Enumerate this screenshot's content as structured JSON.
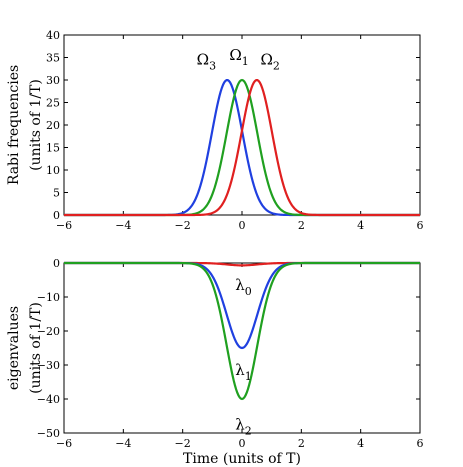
{
  "chart_data": [
    {
      "type": "line",
      "id": "top",
      "xlim": [
        -6,
        6
      ],
      "ylim": [
        0,
        40
      ],
      "xticks": [
        -6,
        -4,
        -2,
        0,
        2,
        4,
        6
      ],
      "yticks": [
        0,
        5,
        10,
        15,
        20,
        25,
        30,
        35,
        40
      ],
      "xticklabels": [
        "−6",
        "−4",
        "−2",
        "0",
        "2",
        "4",
        "6"
      ],
      "yticklabels": [
        "0",
        "5",
        "10",
        "15",
        "20",
        "25",
        "30",
        "35",
        "40"
      ],
      "xlabel": "",
      "ylabel_lines": [
        "Rabi frequencies",
        "(units of 1/T)"
      ],
      "grid": false,
      "series": [
        {
          "color": "#2040e0",
          "amplitude": 30,
          "center": -0.5,
          "width": 0.73
        },
        {
          "color": "#20a020",
          "amplitude": 30,
          "center": 0.0,
          "width": 0.73
        },
        {
          "color": "#e02020",
          "amplitude": 30,
          "center": 0.5,
          "width": 0.73
        }
      ],
      "annotations": [
        {
          "text": "Ω",
          "sub": "3",
          "x": -1.2,
          "y": 33.5
        },
        {
          "text": "Ω",
          "sub": "1",
          "x": -0.1,
          "y": 34.5
        },
        {
          "text": "Ω",
          "sub": "2",
          "x": 0.95,
          "y": 33.5
        }
      ]
    },
    {
      "type": "line",
      "id": "bottom",
      "xlim": [
        -6,
        6
      ],
      "ylim": [
        -50,
        0
      ],
      "xticks": [
        -6,
        -4,
        -2,
        0,
        2,
        4,
        6
      ],
      "yticks": [
        -50,
        -40,
        -30,
        -20,
        -10,
        0
      ],
      "xticklabels": [
        "−6",
        "−4",
        "−2",
        "0",
        "2",
        "4",
        "6"
      ],
      "yticklabels": [
        "−50",
        "−40",
        "−30",
        "−20",
        "−10",
        "0"
      ],
      "xlabel": "Time (units of T)",
      "ylabel_lines": [
        "eigenvalues",
        "(units of 1/T)"
      ],
      "grid": false,
      "series": [
        {
          "color": "#e02020",
          "amplitude": -0.7,
          "center": 0.0,
          "width": 0.73
        },
        {
          "color": "#2040e0",
          "amplitude": -25,
          "center": 0.0,
          "width": 0.73
        },
        {
          "color": "#20a020",
          "amplitude": -40,
          "center": 0.0,
          "width": 0.73
        }
      ],
      "annotations": [
        {
          "text": "λ",
          "sub": "0",
          "x": 0.05,
          "y": -8
        },
        {
          "text": "λ",
          "sub": "1",
          "x": 0.05,
          "y": -33
        },
        {
          "text": "λ",
          "sub": "2",
          "x": 0.05,
          "y": -49
        }
      ]
    }
  ]
}
